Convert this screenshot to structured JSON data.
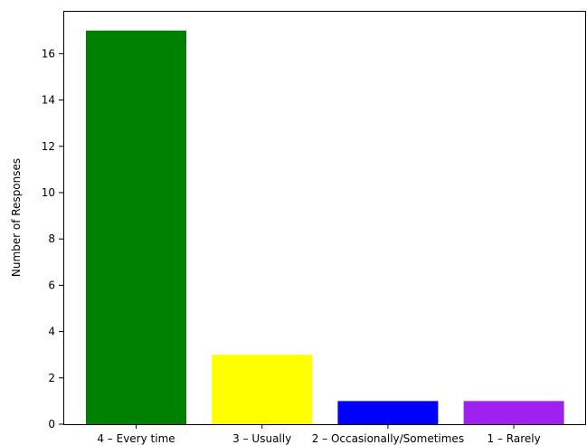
{
  "chart_data": {
    "type": "bar",
    "title": "",
    "xlabel": "",
    "ylabel": "Number of Responses",
    "categories": [
      "4 – Every time",
      "3 – Usually",
      "2 – Occasionally/Sometimes",
      "1 – Rarely"
    ],
    "values": [
      17,
      3,
      1,
      1
    ],
    "bar_colors": [
      "#008000",
      "#ffff00",
      "#0000ff",
      "#a020f0"
    ],
    "yticks": [
      "0",
      "2",
      "4",
      "6",
      "8",
      "10",
      "12",
      "14",
      "16"
    ],
    "ylim": [
      0,
      17.85
    ],
    "grid": false,
    "legend": "none"
  }
}
